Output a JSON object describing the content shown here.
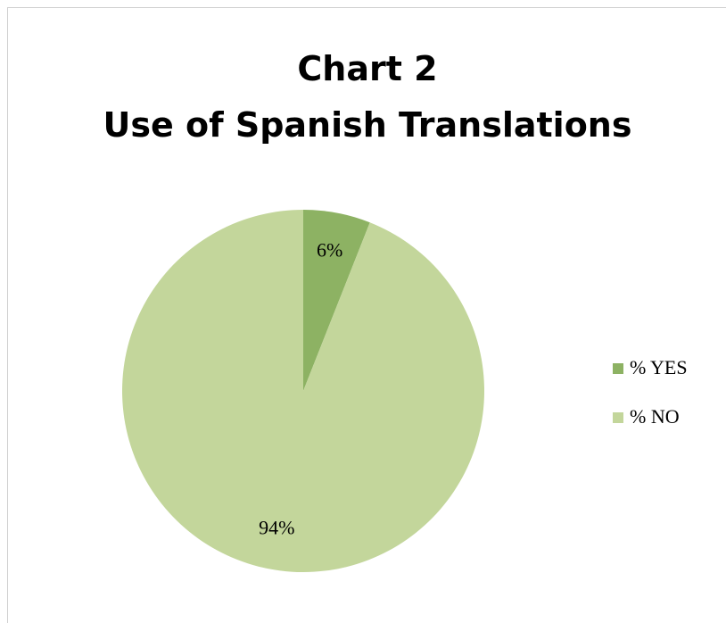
{
  "chart_data": {
    "type": "pie",
    "title": [
      "Chart 2",
      "Use of Spanish Translations"
    ],
    "categories": [
      "% YES",
      "% NO"
    ],
    "values": [
      6,
      94
    ],
    "value_labels": [
      "6%",
      "94%"
    ],
    "colors": [
      "#8db263",
      "#c3d69b"
    ],
    "legend": "right"
  }
}
